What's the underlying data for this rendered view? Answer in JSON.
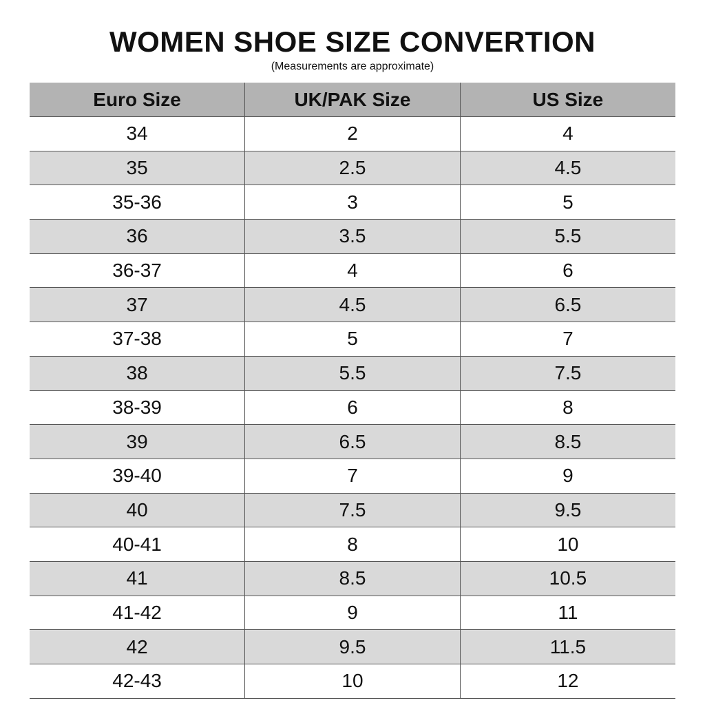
{
  "header": {
    "title": "WOMEN SHOE SIZE CONVERTION",
    "subtitle": "(Measurements are approximate)"
  },
  "table": {
    "columns": [
      "Euro Size",
      "UK/PAK Size",
      "US Size"
    ],
    "rows": [
      [
        "34",
        "2",
        "4"
      ],
      [
        "35",
        "2.5",
        "4.5"
      ],
      [
        "35-36",
        "3",
        "5"
      ],
      [
        "36",
        "3.5",
        "5.5"
      ],
      [
        "36-37",
        "4",
        "6"
      ],
      [
        "37",
        "4.5",
        "6.5"
      ],
      [
        "37-38",
        "5",
        "7"
      ],
      [
        "38",
        "5.5",
        "7.5"
      ],
      [
        "38-39",
        "6",
        "8"
      ],
      [
        "39",
        "6.5",
        "8.5"
      ],
      [
        "39-40",
        "7",
        "9"
      ],
      [
        "40",
        "7.5",
        "9.5"
      ],
      [
        "40-41",
        "8",
        "10"
      ],
      [
        "41",
        "8.5",
        "10.5"
      ],
      [
        "41-42",
        "9",
        "11"
      ],
      [
        "42",
        "9.5",
        "11.5"
      ],
      [
        "42-43",
        "10",
        "12"
      ]
    ]
  }
}
